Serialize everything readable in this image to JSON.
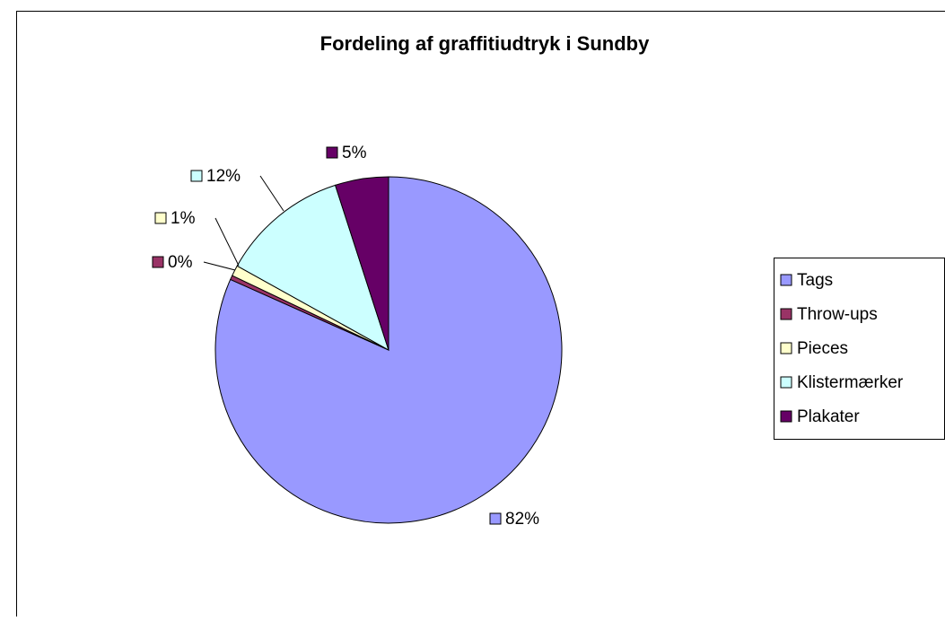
{
  "chart_data": {
    "type": "pie",
    "title": "Fordeling af graffitiudtryk i Sundby",
    "categories": [
      "Tags",
      "Throw-ups",
      "Pieces",
      "Klistermærker",
      "Plakater"
    ],
    "values": [
      82,
      0.4,
      1,
      12,
      5
    ],
    "value_labels": [
      "82%",
      "0%",
      "1%",
      "12%",
      "5%"
    ],
    "colors": [
      "#9999ff",
      "#993366",
      "#ffffcc",
      "#ccffff",
      "#660066"
    ],
    "legend": "right"
  }
}
